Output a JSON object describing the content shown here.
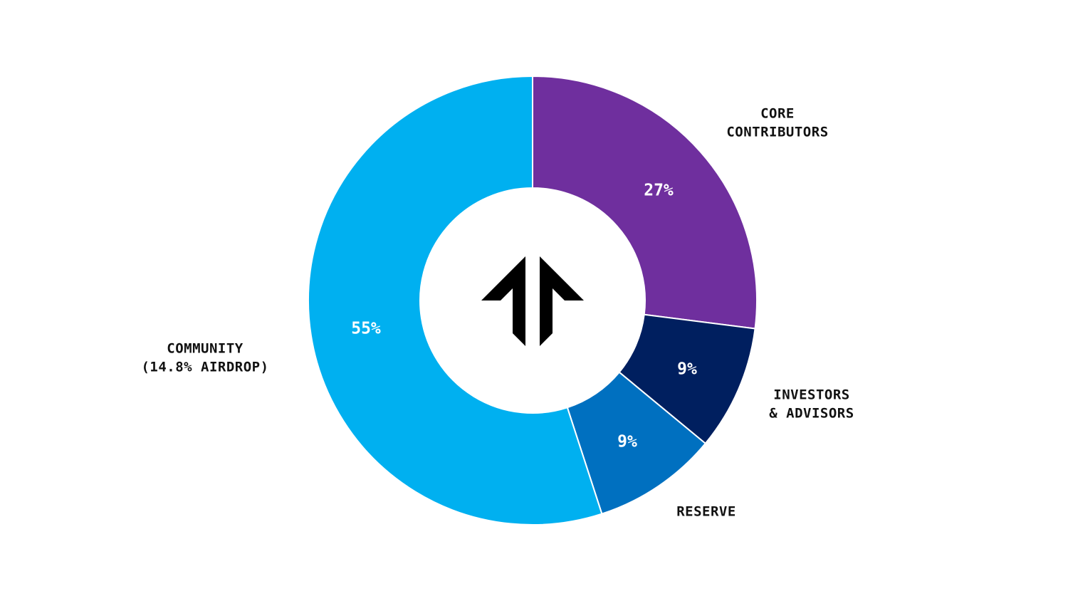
{
  "chart_data": {
    "type": "pie",
    "donut": true,
    "start_angle": "top, clockwise",
    "slices": [
      {
        "label": [
          "CORE",
          "CONTRIBUTORS"
        ],
        "value": 27,
        "value_label": "27%",
        "color": "#6f2f9e"
      },
      {
        "label": [
          "INVESTORS",
          "& ADVISORS"
        ],
        "value": 9,
        "value_label": "9%",
        "color": "#001f5f"
      },
      {
        "label": [
          "RESERVE"
        ],
        "value": 9,
        "value_label": "9%",
        "color": "#0070c0"
      },
      {
        "label": [
          "COMMUNITY",
          "(14.8% AIRDROP)"
        ],
        "value": 55,
        "value_label": "55%",
        "color": "#00b0f0"
      }
    ],
    "center_logo": "double-arrow-up-logo",
    "legend": "none"
  }
}
